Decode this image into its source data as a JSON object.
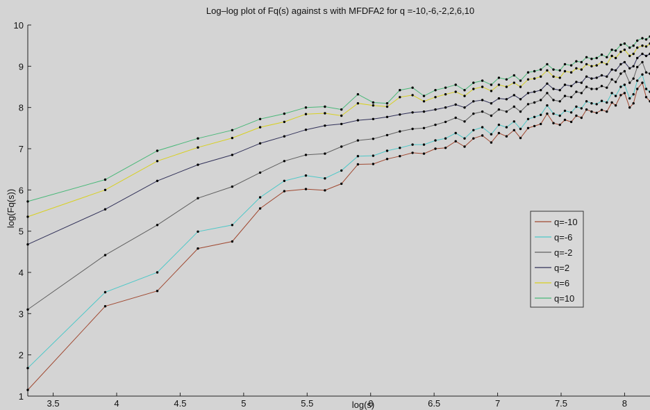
{
  "chart_data": {
    "type": "line",
    "title": "Log–log plot of Fq(s) against s with MFDFA2 for q =-10,-6,-2,2,6,10",
    "xlabel": "log(s)",
    "ylabel": "log(Fq(s))",
    "xlim": [
      3.3,
      8.2
    ],
    "ylim": [
      1,
      10
    ],
    "xticks": [
      3.5,
      4,
      4.5,
      5,
      5.5,
      6,
      6.5,
      7,
      7.5,
      8
    ],
    "yticks": [
      1,
      2,
      3,
      4,
      5,
      6,
      7,
      8,
      9,
      10
    ],
    "grid": false,
    "legend_position": "right",
    "background_color": "#d4d4d4",
    "x": [
      3.3,
      3.91,
      4.32,
      4.64,
      4.91,
      5.13,
      5.32,
      5.49,
      5.64,
      5.77,
      5.9,
      6.02,
      6.13,
      6.23,
      6.33,
      6.42,
      6.51,
      6.59,
      6.67,
      6.74,
      6.81,
      6.88,
      6.95,
      7.01,
      7.07,
      7.13,
      7.18,
      7.24,
      7.29,
      7.34,
      7.39,
      7.44,
      7.49,
      7.53,
      7.58,
      7.62,
      7.66,
      7.7,
      7.74,
      7.78,
      7.82,
      7.86,
      7.9,
      7.93,
      7.97,
      8.0,
      8.04,
      8.07,
      8.1,
      8.14,
      8.17,
      8.2
    ],
    "series": [
      {
        "name": "q=-10",
        "color": "#a04830",
        "values": [
          1.15,
          3.18,
          3.55,
          4.58,
          4.75,
          5.55,
          5.97,
          6.02,
          5.99,
          6.15,
          6.62,
          6.63,
          6.75,
          6.82,
          6.9,
          6.88,
          7.0,
          7.02,
          7.18,
          7.05,
          7.25,
          7.32,
          7.15,
          7.38,
          7.3,
          7.45,
          7.26,
          7.5,
          7.55,
          7.6,
          7.85,
          7.62,
          7.58,
          7.7,
          7.65,
          7.8,
          7.75,
          7.95,
          7.9,
          7.87,
          7.94,
          7.9,
          8.12,
          8.05,
          8.3,
          8.35,
          8.0,
          8.1,
          8.45,
          8.6,
          8.25,
          8.15
        ]
      },
      {
        "name": "q=-6",
        "color": "#4cc8c8",
        "values": [
          1.68,
          3.52,
          4.0,
          4.99,
          5.15,
          5.82,
          6.22,
          6.35,
          6.28,
          6.47,
          6.82,
          6.83,
          6.95,
          7.02,
          7.1,
          7.1,
          7.2,
          7.25,
          7.38,
          7.25,
          7.45,
          7.52,
          7.35,
          7.58,
          7.52,
          7.66,
          7.48,
          7.72,
          7.77,
          7.82,
          8.05,
          7.85,
          7.8,
          7.92,
          7.88,
          8.02,
          7.98,
          8.15,
          8.1,
          8.08,
          8.16,
          8.12,
          8.35,
          8.28,
          8.5,
          8.55,
          8.22,
          8.32,
          8.65,
          8.8,
          8.45,
          8.38
        ]
      },
      {
        "name": "q=-2",
        "color": "#606060",
        "values": [
          3.1,
          4.42,
          5.15,
          5.8,
          6.08,
          6.42,
          6.7,
          6.85,
          6.88,
          7.05,
          7.2,
          7.24,
          7.33,
          7.42,
          7.48,
          7.5,
          7.58,
          7.65,
          7.75,
          7.66,
          7.85,
          7.9,
          7.8,
          7.95,
          7.9,
          8.02,
          7.9,
          8.08,
          8.12,
          8.18,
          8.35,
          8.18,
          8.15,
          8.28,
          8.25,
          8.38,
          8.35,
          8.5,
          8.45,
          8.45,
          8.52,
          8.48,
          8.68,
          8.62,
          8.82,
          8.88,
          8.6,
          8.7,
          8.98,
          9.1,
          8.85,
          8.82
        ]
      },
      {
        "name": "q=2",
        "color": "#303058",
        "values": [
          4.68,
          5.53,
          6.22,
          6.61,
          6.85,
          7.13,
          7.3,
          7.46,
          7.56,
          7.6,
          7.69,
          7.72,
          7.77,
          7.83,
          7.88,
          7.9,
          7.95,
          8.0,
          8.07,
          8.0,
          8.15,
          8.18,
          8.1,
          8.22,
          8.2,
          8.3,
          8.2,
          8.35,
          8.38,
          8.42,
          8.58,
          8.45,
          8.42,
          8.55,
          8.52,
          8.62,
          8.6,
          8.75,
          8.7,
          8.72,
          8.78,
          8.75,
          8.92,
          8.9,
          9.05,
          9.1,
          8.95,
          9.0,
          9.2,
          9.3,
          9.25,
          9.3
        ]
      },
      {
        "name": "q=6",
        "color": "#d8d020",
        "values": [
          5.35,
          6.0,
          6.7,
          7.03,
          7.26,
          7.52,
          7.65,
          7.84,
          7.86,
          7.8,
          8.1,
          8.05,
          8.02,
          8.25,
          8.3,
          8.15,
          8.25,
          8.32,
          8.38,
          8.28,
          8.45,
          8.5,
          8.4,
          8.55,
          8.5,
          8.6,
          8.5,
          8.68,
          8.7,
          8.75,
          8.9,
          8.75,
          8.72,
          8.88,
          8.85,
          8.95,
          8.92,
          9.05,
          9.0,
          9.02,
          9.1,
          9.05,
          9.25,
          9.2,
          9.35,
          9.4,
          9.25,
          9.3,
          9.45,
          9.5,
          9.48,
          9.55
        ]
      },
      {
        "name": "q=10",
        "color": "#48b878",
        "values": [
          5.72,
          6.25,
          6.95,
          7.25,
          7.45,
          7.72,
          7.85,
          8.0,
          8.02,
          7.95,
          8.32,
          8.12,
          8.1,
          8.42,
          8.48,
          8.28,
          8.42,
          8.48,
          8.55,
          8.42,
          8.6,
          8.65,
          8.55,
          8.72,
          8.68,
          8.78,
          8.65,
          8.85,
          8.88,
          8.92,
          9.05,
          8.92,
          8.9,
          9.05,
          9.02,
          9.12,
          9.1,
          9.22,
          9.18,
          9.2,
          9.28,
          9.22,
          9.4,
          9.38,
          9.52,
          9.55,
          9.45,
          9.5,
          9.62,
          9.68,
          9.65,
          9.72
        ]
      }
    ]
  }
}
